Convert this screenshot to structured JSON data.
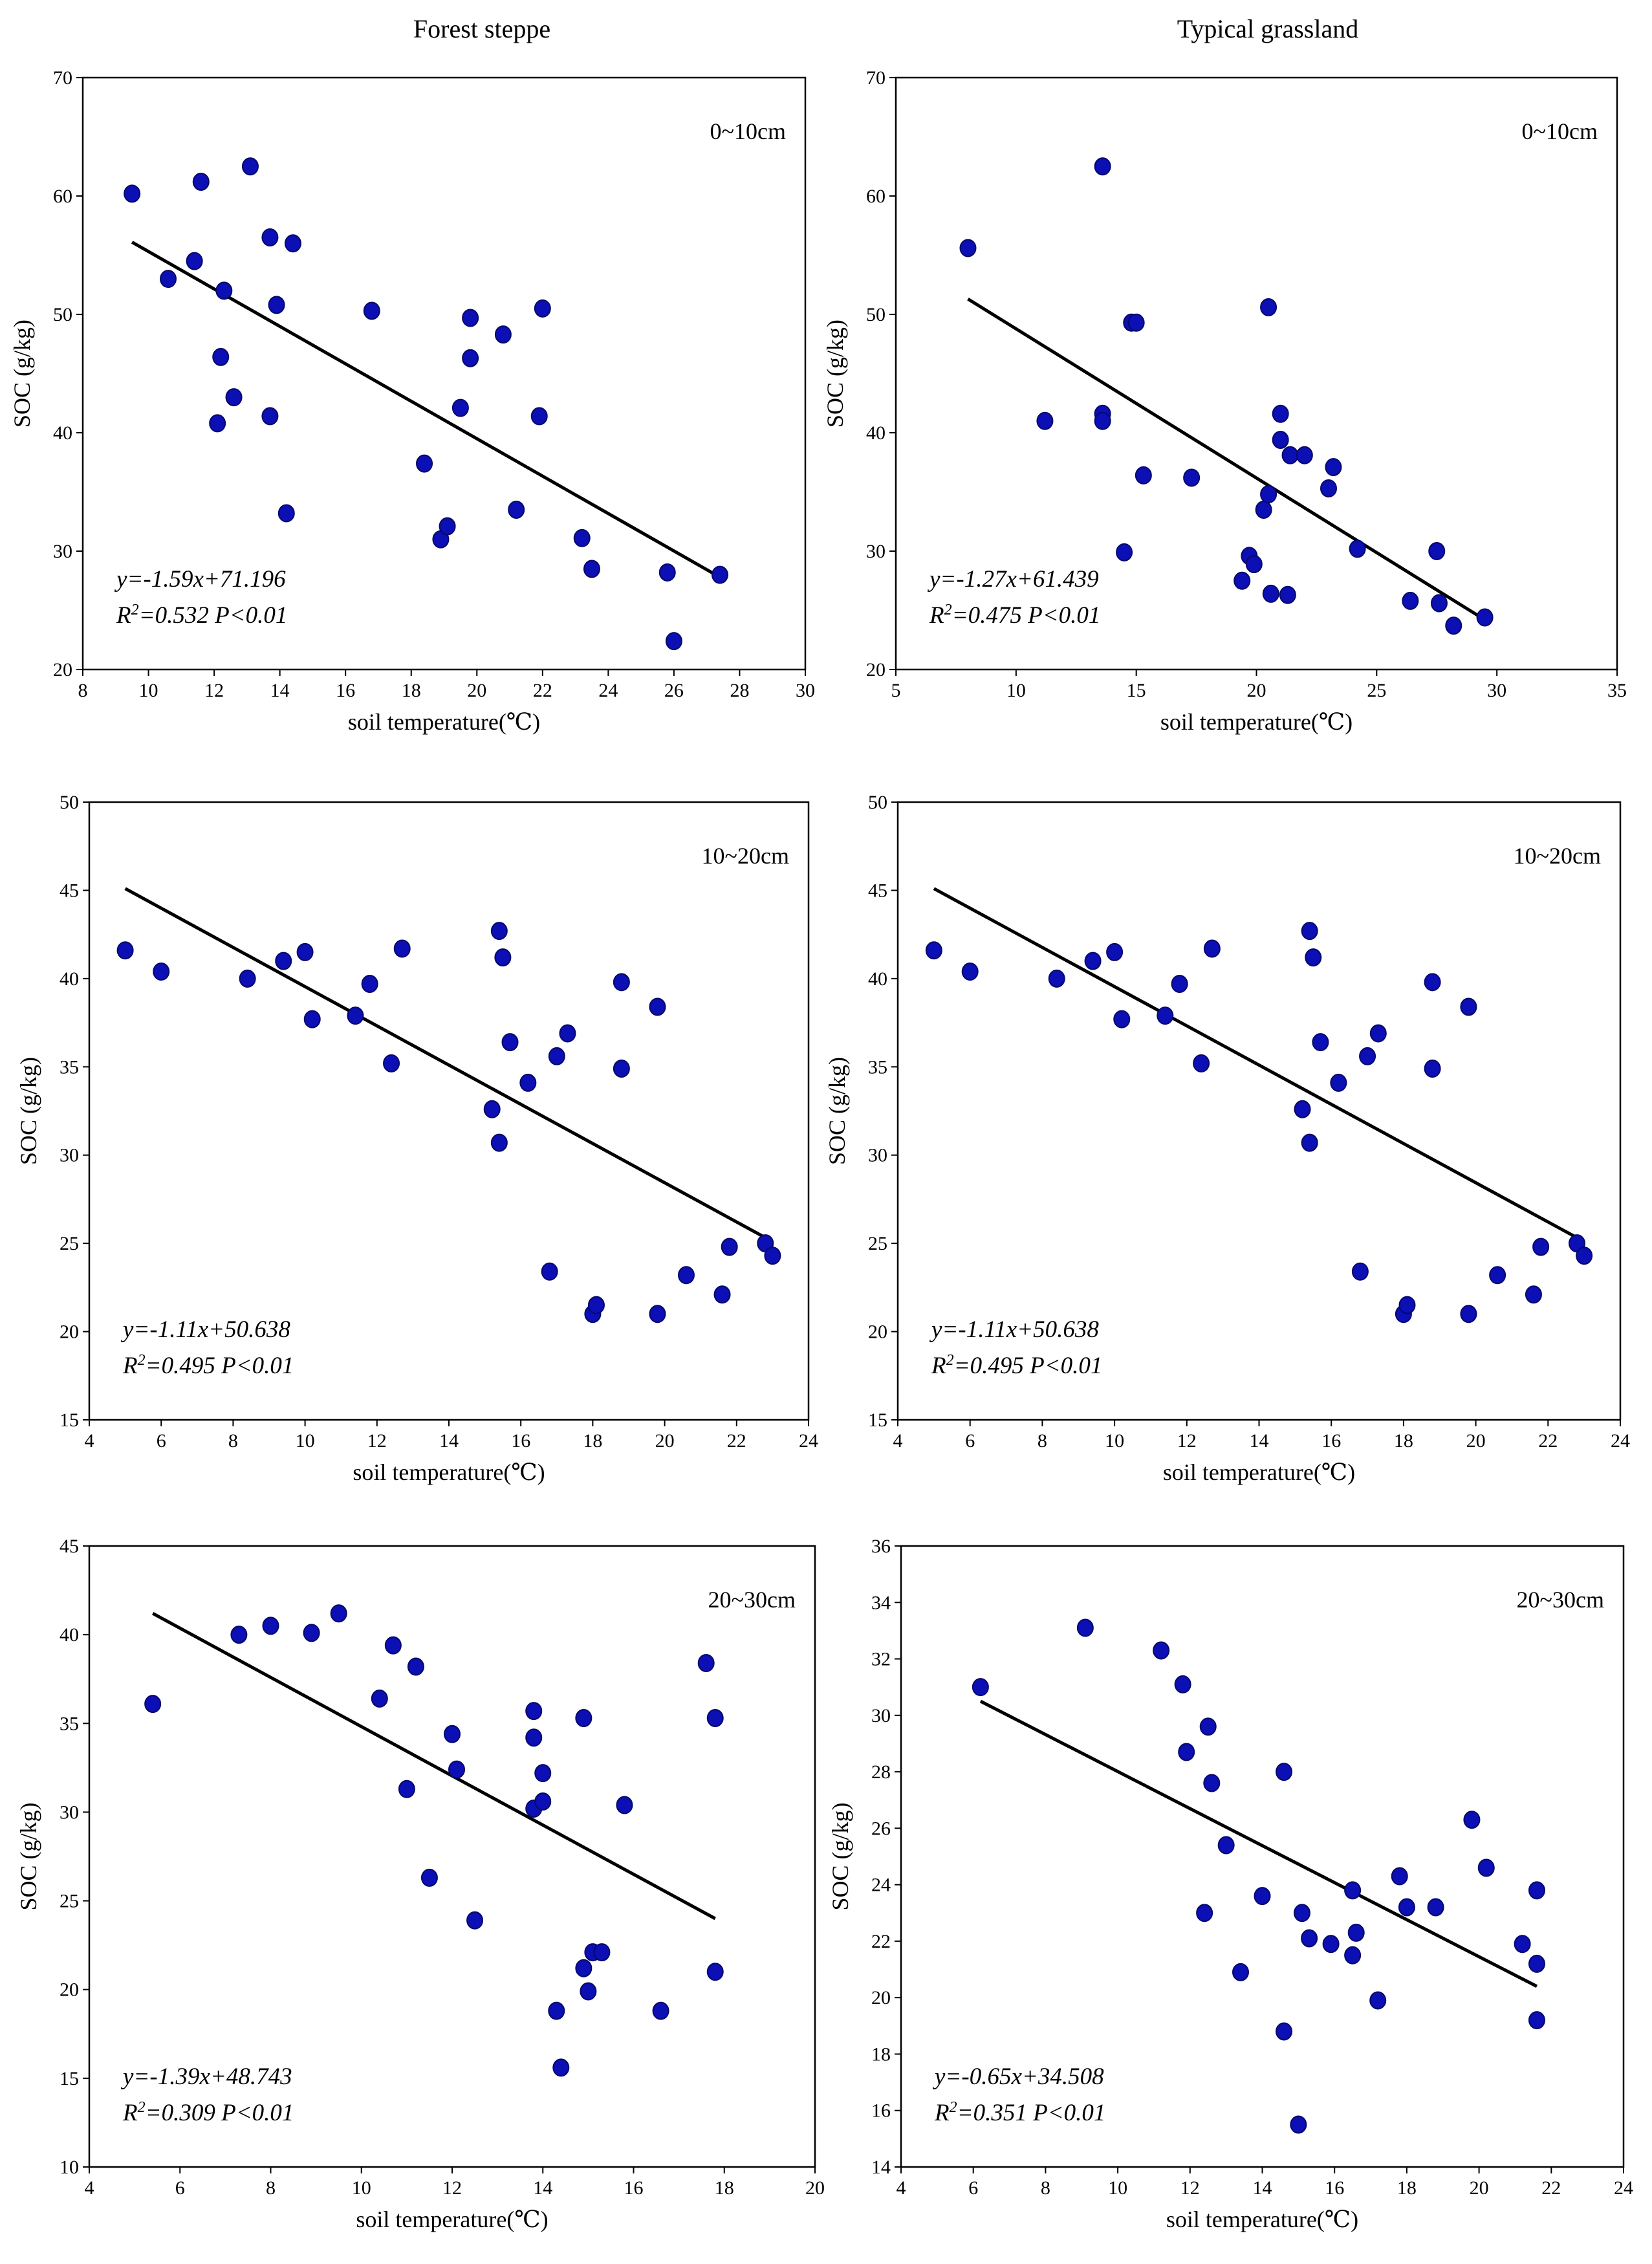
{
  "column_titles": [
    "Forest steppe",
    "Typical grassland"
  ],
  "chart_data": [
    {
      "type": "scatter",
      "column": "Forest steppe",
      "depth_label": "0~10cm",
      "xlabel": "soil temperature(℃)",
      "ylabel": "SOC (g/kg)",
      "xlim": [
        8,
        30
      ],
      "xticks": [
        8,
        10,
        12,
        14,
        16,
        18,
        20,
        22,
        24,
        26,
        28,
        30
      ],
      "ylim": [
        20,
        70
      ],
      "yticks": [
        20,
        30,
        40,
        50,
        60,
        70
      ],
      "equation": "y=-1.59x+71.196",
      "r2_label": "R",
      "r2_value": "=0.532 P<0.01",
      "trendline": {
        "x": [
          9.5,
          27.4
        ],
        "y": [
          56.1,
          27.8
        ]
      },
      "points": [
        [
          9.5,
          60.2
        ],
        [
          10.6,
          53
        ],
        [
          11.4,
          54.5
        ],
        [
          11.6,
          61.2
        ],
        [
          12.1,
          40.8
        ],
        [
          12.2,
          46.4
        ],
        [
          12.3,
          52
        ],
        [
          12.6,
          43
        ],
        [
          13.1,
          62.5
        ],
        [
          13.7,
          41.4
        ],
        [
          13.7,
          56.5
        ],
        [
          13.9,
          50.8
        ],
        [
          14.2,
          33.2
        ],
        [
          14.4,
          56
        ],
        [
          16.8,
          50.3
        ],
        [
          18.4,
          37.4
        ],
        [
          18.9,
          31
        ],
        [
          19.1,
          32.1
        ],
        [
          19.5,
          42.1
        ],
        [
          19.8,
          49.7
        ],
        [
          19.8,
          46.3
        ],
        [
          20.8,
          48.3
        ],
        [
          21.2,
          33.5
        ],
        [
          21.9,
          41.4
        ],
        [
          22,
          50.5
        ],
        [
          23.2,
          31.1
        ],
        [
          23.5,
          28.5
        ],
        [
          25.8,
          28.2
        ],
        [
          26,
          22.4
        ],
        [
          27.4,
          28
        ]
      ]
    },
    {
      "type": "scatter",
      "column": "Typical grassland",
      "depth_label": "0~10cm",
      "xlabel": "soil temperature(℃)",
      "ylabel": "SOC (g/kg)",
      "xlim": [
        5,
        35
      ],
      "xticks": [
        5,
        10,
        15,
        20,
        25,
        30,
        35
      ],
      "ylim": [
        20,
        70
      ],
      "yticks": [
        20,
        30,
        40,
        50,
        60,
        70
      ],
      "equation": "y=-1.27x+61.439",
      "r2_label": "R",
      "r2_value": "=0.475 P<0.01",
      "trendline": {
        "x": [
          8,
          29.5
        ],
        "y": [
          51.3,
          24.2
        ]
      },
      "points": [
        [
          8,
          55.6
        ],
        [
          11.2,
          41
        ],
        [
          13.6,
          62.5
        ],
        [
          13.6,
          41.6
        ],
        [
          13.6,
          41
        ],
        [
          14.5,
          29.9
        ],
        [
          14.8,
          49.3
        ],
        [
          15,
          49.3
        ],
        [
          15.3,
          36.4
        ],
        [
          17.3,
          36.2
        ],
        [
          19.4,
          27.5
        ],
        [
          19.7,
          29.6
        ],
        [
          19.9,
          28.9
        ],
        [
          20.3,
          33.5
        ],
        [
          20.5,
          50.6
        ],
        [
          20.5,
          34.8
        ],
        [
          20.6,
          26.4
        ],
        [
          21,
          41.6
        ],
        [
          21,
          39.4
        ],
        [
          21.3,
          26.3
        ],
        [
          21.4,
          38.1
        ],
        [
          22,
          38.1
        ],
        [
          23,
          35.3
        ],
        [
          23.2,
          37.1
        ],
        [
          24.2,
          30.2
        ],
        [
          26.4,
          25.8
        ],
        [
          27.5,
          30
        ],
        [
          27.6,
          25.6
        ],
        [
          28.2,
          23.7
        ],
        [
          29.5,
          24.4
        ]
      ]
    },
    {
      "type": "scatter",
      "column": "Forest steppe",
      "depth_label": "10~20cm",
      "xlabel": "soil temperature(℃)",
      "ylabel": "SOC (g/kg)",
      "xlim": [
        4,
        24
      ],
      "xticks": [
        4,
        6,
        8,
        10,
        12,
        14,
        16,
        18,
        20,
        22,
        24
      ],
      "ylim": [
        15,
        50
      ],
      "yticks": [
        15,
        20,
        25,
        30,
        35,
        40,
        45,
        50
      ],
      "equation": "y=-1.11x+50.638",
      "r2_label": "R",
      "r2_value": "=0.495 P<0.01",
      "trendline": {
        "x": [
          5,
          23
        ],
        "y": [
          45.1,
          25.1
        ]
      },
      "points": [
        [
          5,
          41.6
        ],
        [
          6,
          40.4
        ],
        [
          8.4,
          40
        ],
        [
          9.4,
          41
        ],
        [
          10,
          41.5
        ],
        [
          10.2,
          37.7
        ],
        [
          11.4,
          37.9
        ],
        [
          11.8,
          39.7
        ],
        [
          12.4,
          35.2
        ],
        [
          12.7,
          41.7
        ],
        [
          15.2,
          32.6
        ],
        [
          15.4,
          30.7
        ],
        [
          15.4,
          42.7
        ],
        [
          15.5,
          41.2
        ],
        [
          15.7,
          36.4
        ],
        [
          16.2,
          34.1
        ],
        [
          16.8,
          23.4
        ],
        [
          17,
          35.6
        ],
        [
          17.3,
          36.9
        ],
        [
          18,
          21
        ],
        [
          18.1,
          21.5
        ],
        [
          18.8,
          39.8
        ],
        [
          18.8,
          34.9
        ],
        [
          19.8,
          38.4
        ],
        [
          19.8,
          21
        ],
        [
          20.6,
          23.2
        ],
        [
          21.6,
          22.1
        ],
        [
          21.8,
          24.8
        ],
        [
          22.8,
          25
        ],
        [
          23,
          24.3
        ]
      ]
    },
    {
      "type": "scatter",
      "column": "Typical grassland",
      "depth_label": "10~20cm",
      "xlabel": "soil temperature(℃)",
      "ylabel": "SOC (g/kg)",
      "xlim": [
        4,
        24
      ],
      "xticks": [
        4,
        6,
        8,
        10,
        12,
        14,
        16,
        18,
        20,
        22,
        24
      ],
      "ylim": [
        15,
        50
      ],
      "yticks": [
        15,
        20,
        25,
        30,
        35,
        40,
        45,
        50
      ],
      "equation": "y=-1.11x+50.638",
      "r2_label": "R",
      "r2_value": "=0.495 P<0.01",
      "trendline": {
        "x": [
          5,
          23
        ],
        "y": [
          45.1,
          25.1
        ]
      },
      "points": [
        [
          5,
          41.6
        ],
        [
          6,
          40.4
        ],
        [
          8.4,
          40
        ],
        [
          9.4,
          41
        ],
        [
          10,
          41.5
        ],
        [
          10.2,
          37.7
        ],
        [
          11.4,
          37.9
        ],
        [
          11.8,
          39.7
        ],
        [
          12.4,
          35.2
        ],
        [
          12.7,
          41.7
        ],
        [
          15.2,
          32.6
        ],
        [
          15.4,
          30.7
        ],
        [
          15.4,
          42.7
        ],
        [
          15.5,
          41.2
        ],
        [
          15.7,
          36.4
        ],
        [
          16.2,
          34.1
        ],
        [
          16.8,
          23.4
        ],
        [
          17,
          35.6
        ],
        [
          17.3,
          36.9
        ],
        [
          18,
          21
        ],
        [
          18.1,
          21.5
        ],
        [
          18.8,
          39.8
        ],
        [
          18.8,
          34.9
        ],
        [
          19.8,
          38.4
        ],
        [
          19.8,
          21
        ],
        [
          20.6,
          23.2
        ],
        [
          21.6,
          22.1
        ],
        [
          21.8,
          24.8
        ],
        [
          22.8,
          25
        ],
        [
          23,
          24.3
        ]
      ]
    },
    {
      "type": "scatter",
      "column": "Forest steppe",
      "depth_label": "20~30cm",
      "xlabel": "soil temperature(℃)",
      "ylabel": "SOC (g/kg)",
      "xlim": [
        4,
        20
      ],
      "xticks": [
        4,
        6,
        8,
        10,
        12,
        14,
        16,
        18,
        20
      ],
      "ylim": [
        10,
        45
      ],
      "yticks": [
        10,
        15,
        20,
        25,
        30,
        35,
        40,
        45
      ],
      "equation": "y=-1.39x+48.743",
      "r2_label": "R",
      "r2_value": "=0.309 P<0.01",
      "trendline": {
        "x": [
          5.4,
          17.8
        ],
        "y": [
          41.2,
          24
        ]
      },
      "points": [
        [
          5.4,
          36.1
        ],
        [
          7.3,
          40
        ],
        [
          8,
          40.5
        ],
        [
          8.9,
          40.1
        ],
        [
          9.5,
          41.2
        ],
        [
          10.4,
          36.4
        ],
        [
          10.7,
          39.4
        ],
        [
          11,
          31.3
        ],
        [
          11.2,
          38.2
        ],
        [
          11.5,
          26.3
        ],
        [
          12,
          34.4
        ],
        [
          12.1,
          32.4
        ],
        [
          12.5,
          23.9
        ],
        [
          13.8,
          35.7
        ],
        [
          13.8,
          34.2
        ],
        [
          13.8,
          30.2
        ],
        [
          14,
          32.2
        ],
        [
          14,
          30.6
        ],
        [
          14.3,
          18.8
        ],
        [
          14.4,
          15.6
        ],
        [
          14.9,
          35.3
        ],
        [
          14.9,
          21.2
        ],
        [
          15,
          19.9
        ],
        [
          15.1,
          22.1
        ],
        [
          15.3,
          22.1
        ],
        [
          15.8,
          30.4
        ],
        [
          16.6,
          18.8
        ],
        [
          17.6,
          38.4
        ],
        [
          17.8,
          35.3
        ],
        [
          17.8,
          21
        ]
      ]
    },
    {
      "type": "scatter",
      "column": "Typical grassland",
      "depth_label": "20~30cm",
      "xlabel": "soil temperature(℃)",
      "ylabel": "SOC (g/kg)",
      "xlim": [
        4,
        24
      ],
      "xticks": [
        4,
        6,
        8,
        10,
        12,
        14,
        16,
        18,
        20,
        22,
        24
      ],
      "ylim": [
        14,
        36
      ],
      "yticks": [
        14,
        16,
        18,
        20,
        22,
        24,
        26,
        28,
        30,
        32,
        34,
        36
      ],
      "equation": "y=-0.65x+34.508",
      "r2_label": "R",
      "r2_value": "=0.351 P<0.01",
      "trendline": {
        "x": [
          6.2,
          21.6
        ],
        "y": [
          30.5,
          20.4
        ]
      },
      "points": [
        [
          6.2,
          31
        ],
        [
          9.1,
          33.1
        ],
        [
          11.2,
          32.3
        ],
        [
          11.8,
          31.1
        ],
        [
          11.9,
          28.7
        ],
        [
          12.5,
          29.6
        ],
        [
          12.6,
          27.6
        ],
        [
          12.4,
          23
        ],
        [
          13,
          25.4
        ],
        [
          13.4,
          20.9
        ],
        [
          14,
          23.6
        ],
        [
          14.6,
          28
        ],
        [
          14.6,
          18.8
        ],
        [
          15,
          15.5
        ],
        [
          15.1,
          23
        ],
        [
          15.3,
          22.1
        ],
        [
          15.9,
          21.9
        ],
        [
          16.5,
          23.8
        ],
        [
          16.5,
          21.5
        ],
        [
          16.6,
          22.3
        ],
        [
          17.2,
          19.9
        ],
        [
          17.8,
          24.3
        ],
        [
          18,
          23.2
        ],
        [
          18.8,
          23.2
        ],
        [
          19.8,
          26.3
        ],
        [
          20.2,
          24.6
        ],
        [
          21.2,
          21.9
        ],
        [
          21.6,
          23.8
        ],
        [
          21.6,
          21.2
        ],
        [
          21.6,
          19.2
        ]
      ]
    }
  ],
  "colors": {
    "marker": "#0b0fb4",
    "marker_edge": "#06086a",
    "line": "#000000",
    "frame": "#000000"
  }
}
